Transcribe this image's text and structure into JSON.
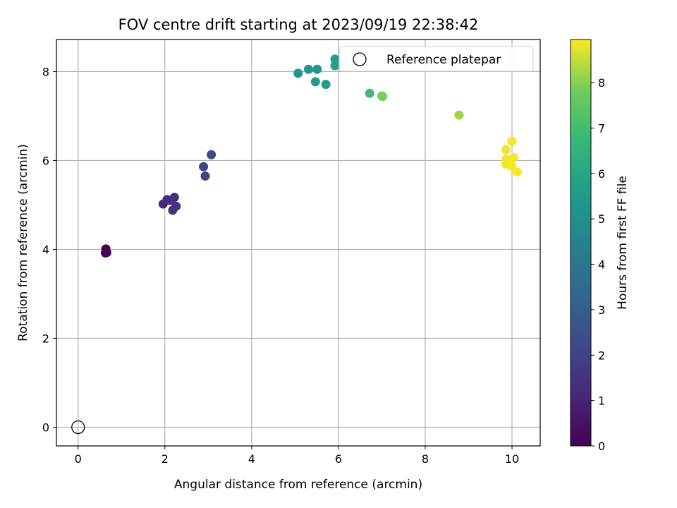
{
  "chart_data": {
    "type": "scatter",
    "title": "FOV centre drift starting at 2023/09/19 22:38:42",
    "xlabel": "Angular distance from reference (arcmin)",
    "ylabel": "Rotation from reference (arcmin)",
    "xlim": [
      -0.5,
      10.65
    ],
    "ylim": [
      -0.42,
      8.72
    ],
    "xticks": [
      0,
      2,
      4,
      6,
      8,
      10
    ],
    "yticks": [
      0,
      2,
      4,
      6,
      8
    ],
    "grid": true,
    "legend": {
      "placement": "upper right",
      "entries": [
        "Reference platepar"
      ]
    },
    "colorbar": {
      "label": "Hours from first FF file",
      "colormap": "viridis",
      "range": [
        0,
        8.95
      ],
      "ticks": [
        0,
        1,
        2,
        3,
        4,
        5,
        6,
        7,
        8
      ]
    },
    "reference_point": {
      "x": 0,
      "y": 0,
      "label": "Reference platepar"
    },
    "points": [
      {
        "x": 0.64,
        "y": 4.01,
        "t": 0.0
      },
      {
        "x": 0.63,
        "y": 3.92,
        "t": 0.05
      },
      {
        "x": 0.66,
        "y": 3.93,
        "t": 0.1
      },
      {
        "x": 1.96,
        "y": 5.02,
        "t": 1.2
      },
      {
        "x": 2.05,
        "y": 5.12,
        "t": 1.3
      },
      {
        "x": 2.12,
        "y": 5.1,
        "t": 1.35
      },
      {
        "x": 2.22,
        "y": 5.17,
        "t": 1.4
      },
      {
        "x": 2.18,
        "y": 4.88,
        "t": 1.45
      },
      {
        "x": 2.26,
        "y": 4.97,
        "t": 1.5
      },
      {
        "x": 2.89,
        "y": 5.86,
        "t": 2.0
      },
      {
        "x": 2.93,
        "y": 5.65,
        "t": 2.1
      },
      {
        "x": 3.07,
        "y": 6.13,
        "t": 2.2
      },
      {
        "x": 5.07,
        "y": 7.96,
        "t": 5.2
      },
      {
        "x": 5.31,
        "y": 8.05,
        "t": 5.3
      },
      {
        "x": 5.51,
        "y": 8.05,
        "t": 5.4
      },
      {
        "x": 5.47,
        "y": 7.77,
        "t": 5.5
      },
      {
        "x": 5.71,
        "y": 7.71,
        "t": 5.6
      },
      {
        "x": 5.92,
        "y": 8.28,
        "t": 5.7
      },
      {
        "x": 5.92,
        "y": 8.13,
        "t": 5.75
      },
      {
        "x": 6.72,
        "y": 7.51,
        "t": 6.9
      },
      {
        "x": 7.0,
        "y": 7.45,
        "t": 7.8
      },
      {
        "x": 7.02,
        "y": 7.44,
        "t": 7.9
      },
      {
        "x": 8.78,
        "y": 7.02,
        "t": 8.2
      },
      {
        "x": 10.0,
        "y": 6.43,
        "t": 8.9
      },
      {
        "x": 9.86,
        "y": 6.24,
        "t": 8.85
      },
      {
        "x": 9.87,
        "y": 6.03,
        "t": 8.86
      },
      {
        "x": 10.04,
        "y": 6.06,
        "t": 8.87
      },
      {
        "x": 9.86,
        "y": 5.92,
        "t": 8.88
      },
      {
        "x": 9.95,
        "y": 5.93,
        "t": 8.89
      },
      {
        "x": 10.0,
        "y": 5.86,
        "t": 8.92
      },
      {
        "x": 10.12,
        "y": 5.74,
        "t": 8.95
      }
    ]
  }
}
